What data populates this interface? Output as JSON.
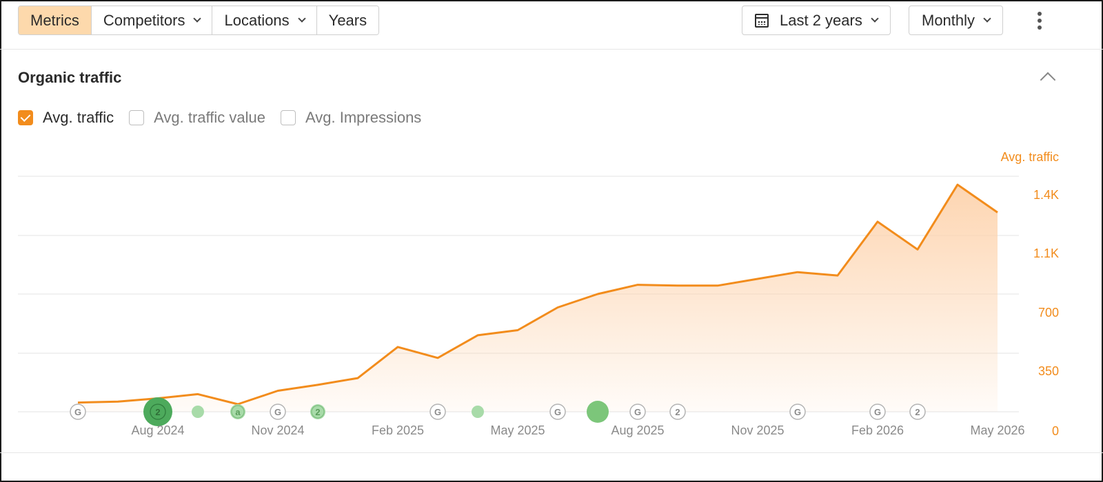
{
  "toolbar": {
    "tabs": [
      {
        "label": "Metrics",
        "active": true,
        "has_menu": false
      },
      {
        "label": "Competitors",
        "active": false,
        "has_menu": true
      },
      {
        "label": "Locations",
        "active": false,
        "has_menu": true
      },
      {
        "label": "Years",
        "active": false,
        "has_menu": false
      }
    ],
    "date_range_label": "Last 2 years",
    "interval_label": "Monthly"
  },
  "section": {
    "title": "Organic traffic",
    "checkboxes": [
      {
        "label": "Avg. traffic",
        "checked": true
      },
      {
        "label": "Avg. traffic value",
        "checked": false
      },
      {
        "label": "Avg. Impressions",
        "checked": false
      }
    ]
  },
  "colors": {
    "accent": "#f28c1c",
    "tab_active_bg": "#fdd9ac",
    "area_top": "#fdd3ad",
    "marker_green_dark": "#4daa5c",
    "marker_green_light": "#a8dba9"
  },
  "chart_data": {
    "type": "area",
    "ylabel": "Avg. traffic",
    "yaxis_side": "right",
    "ylim": [
      0,
      1400
    ],
    "yticks": [
      {
        "value": 0,
        "label": "0"
      },
      {
        "value": 350,
        "label": "350"
      },
      {
        "value": 700,
        "label": "700"
      },
      {
        "value": 1050,
        "label": "1.1K"
      },
      {
        "value": 1400,
        "label": "1.4K"
      }
    ],
    "xticks": [
      "Aug 2024",
      "Nov 2024",
      "Feb 2025",
      "May 2025",
      "Aug 2025",
      "Nov 2025",
      "Feb 2026",
      "May 2026"
    ],
    "grid": true,
    "series": [
      {
        "values": [
          55,
          60,
          80,
          105,
          45,
          125,
          160,
          200,
          385,
          320,
          455,
          485,
          620,
          700,
          755,
          750,
          750,
          790,
          830,
          810,
          1130,
          965,
          1350,
          1185
        ]
      }
    ],
    "events": [
      {
        "index": 0,
        "kind": "G"
      },
      {
        "index": 2,
        "kind": "count",
        "label": "2",
        "size": "large"
      },
      {
        "index": 3,
        "kind": "dot",
        "size": "small"
      },
      {
        "index": 4,
        "kind": "count",
        "label": "a",
        "size": "small"
      },
      {
        "index": 5,
        "kind": "G"
      },
      {
        "index": 6,
        "kind": "count",
        "label": "2",
        "size": "small"
      },
      {
        "index": 9,
        "kind": "G"
      },
      {
        "index": 10,
        "kind": "dot",
        "size": "small"
      },
      {
        "index": 12,
        "kind": "G"
      },
      {
        "index": 13,
        "kind": "dot",
        "size": "large"
      },
      {
        "index": 14,
        "kind": "G"
      },
      {
        "index": 15,
        "kind": "ring",
        "label": "2"
      },
      {
        "index": 18,
        "kind": "G"
      },
      {
        "index": 20,
        "kind": "G"
      },
      {
        "index": 21,
        "kind": "ring",
        "label": "2"
      }
    ]
  }
}
